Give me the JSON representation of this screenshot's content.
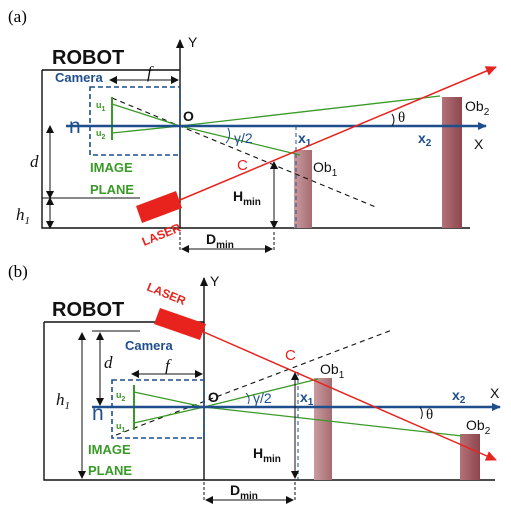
{
  "panel_a": {
    "tag": "(a)",
    "robot": "ROBOT",
    "camera": "Camera",
    "focal": "f",
    "n": "n",
    "u1": "u",
    "u1_sub": "1",
    "u2": "u",
    "u2_sub": "2",
    "d": "d",
    "h1": "h",
    "h1_sub": "1",
    "image": "IMAGE",
    "plane": "PLANE",
    "y_axis": "Y",
    "x_axis": "X",
    "origin": "O",
    "gamma": "γ/2",
    "theta": "θ",
    "x1": "x",
    "x1_sub": "1",
    "x2": "x",
    "x2_sub": "2",
    "ob1": "Ob",
    "ob1_sub": "1",
    "ob2": "Ob",
    "ob2_sub": "2",
    "c": "C",
    "laser": "LASER",
    "hmin": "H",
    "hmin_sub": "min",
    "dmin": "D",
    "dmin_sub": "min"
  },
  "panel_b": {
    "tag": "(b)",
    "robot": "ROBOT",
    "camera": "Camera",
    "focal": "f",
    "n": "n",
    "u1": "u",
    "u1_sub": "1",
    "u2": "u",
    "u2_sub": "2",
    "d": "d",
    "h1": "h",
    "h1_sub": "1",
    "image": "IMAGE",
    "plane": "PLANE",
    "y_axis": "Y",
    "x_axis": "X",
    "origin": "O",
    "gamma": "γ/2",
    "theta": "θ",
    "x1": "x",
    "x1_sub": "1",
    "x2": "x",
    "x2_sub": "2",
    "ob1": "Ob",
    "ob1_sub": "1",
    "ob2": "Ob",
    "ob2_sub": "2",
    "c": "C",
    "laser": "LASER",
    "hmin": "H",
    "hmin_sub": "min",
    "dmin": "D",
    "dmin_sub": "min"
  },
  "colors": {
    "axis_blue": "#1f4e8c",
    "laser_red": "#e8231e",
    "camera_green": "#3a9a28",
    "obstacle": "#b77d82",
    "obstacle_dark": "#9b4f55"
  }
}
